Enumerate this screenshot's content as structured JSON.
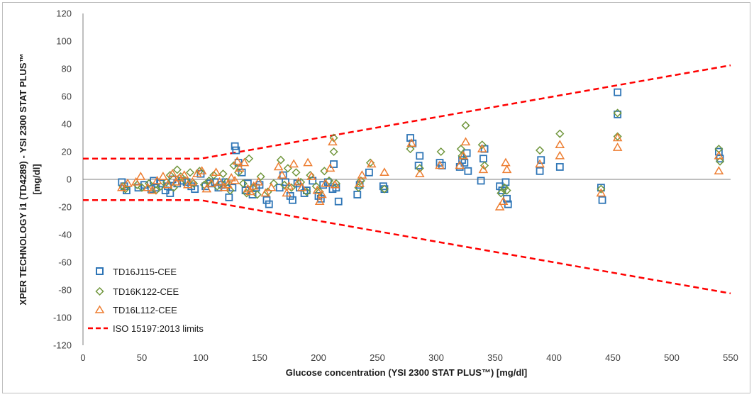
{
  "chart_data": {
    "type": "scatter",
    "title": "",
    "xlabel": "Glucose concentration (YSI 2300 STAT PLUS™) [mg/dl]",
    "ylabel_line1": "XPER TECHNOLOGY i1 (TD4289)  -  YSI 2300 STAT PLUS™",
    "ylabel_line2": "[mg/dl]",
    "xlim": [
      0,
      550
    ],
    "ylim": [
      -120,
      120
    ],
    "x_ticks": [
      0,
      50,
      100,
      150,
      200,
      250,
      300,
      350,
      400,
      450,
      500,
      550
    ],
    "y_ticks": [
      120,
      100,
      80,
      60,
      40,
      20,
      0,
      -20,
      -40,
      -60,
      -80,
      -100,
      -120
    ],
    "grid": false,
    "legend_position": "bottom-left",
    "series": [
      {
        "name": "TD16J115-CEE",
        "marker": "square",
        "color": "#2e75b6",
        "points": [
          [
            33,
            -2
          ],
          [
            35,
            -5
          ],
          [
            37,
            -8
          ],
          [
            47,
            -6
          ],
          [
            52,
            -4
          ],
          [
            58,
            -7
          ],
          [
            60,
            -1
          ],
          [
            62,
            -6
          ],
          [
            66,
            -3
          ],
          [
            70,
            -8
          ],
          [
            72,
            -5
          ],
          [
            74,
            -10
          ],
          [
            76,
            0
          ],
          [
            80,
            -3
          ],
          [
            84,
            -1
          ],
          [
            88,
            -2
          ],
          [
            92,
            -5
          ],
          [
            95,
            -7
          ],
          [
            100,
            4
          ],
          [
            104,
            -5
          ],
          [
            108,
            -3
          ],
          [
            112,
            -2
          ],
          [
            115,
            -6
          ],
          [
            118,
            -4
          ],
          [
            121,
            -2
          ],
          [
            124,
            -13
          ],
          [
            127,
            -6
          ],
          [
            129,
            24
          ],
          [
            130,
            21
          ],
          [
            132,
            12
          ],
          [
            135,
            5
          ],
          [
            138,
            -8
          ],
          [
            140,
            -3
          ],
          [
            144,
            -11
          ],
          [
            147,
            -6
          ],
          [
            150,
            -4
          ],
          [
            156,
            -15
          ],
          [
            158,
            -18
          ],
          [
            167,
            -6
          ],
          [
            170,
            3
          ],
          [
            172,
            -2
          ],
          [
            176,
            -12
          ],
          [
            178,
            -15
          ],
          [
            182,
            -3
          ],
          [
            184,
            -6
          ],
          [
            188,
            -10
          ],
          [
            190,
            -8
          ],
          [
            195,
            -1
          ],
          [
            200,
            -12
          ],
          [
            202,
            -14
          ],
          [
            204,
            -4
          ],
          [
            208,
            -2
          ],
          [
            212,
            -7
          ],
          [
            213,
            11
          ],
          [
            215,
            -6
          ],
          [
            217,
            -16
          ],
          [
            233,
            -11
          ],
          [
            235,
            -4
          ],
          [
            243,
            5
          ],
          [
            255,
            -5
          ],
          [
            256,
            -7
          ],
          [
            278,
            30
          ],
          [
            280,
            26
          ],
          [
            285,
            10
          ],
          [
            286,
            17
          ],
          [
            303,
            12
          ],
          [
            305,
            10
          ],
          [
            320,
            9
          ],
          [
            322,
            14
          ],
          [
            324,
            12
          ],
          [
            326,
            19
          ],
          [
            327,
            6
          ],
          [
            338,
            -1
          ],
          [
            340,
            15
          ],
          [
            341,
            22
          ],
          [
            354,
            -5
          ],
          [
            356,
            -8
          ],
          [
            359,
            -2
          ],
          [
            360,
            -14
          ],
          [
            361,
            -18
          ],
          [
            388,
            6
          ],
          [
            389,
            14
          ],
          [
            405,
            9
          ],
          [
            440,
            -6
          ],
          [
            441,
            -15
          ],
          [
            454,
            47
          ],
          [
            454,
            63
          ],
          [
            540,
            20
          ],
          [
            541,
            15
          ]
        ]
      },
      {
        "name": "TD16K122-CEE",
        "marker": "diamond",
        "color": "#70963c",
        "points": [
          [
            34,
            -5
          ],
          [
            36,
            -7
          ],
          [
            46,
            -4
          ],
          [
            50,
            -6
          ],
          [
            56,
            -3
          ],
          [
            62,
            -8
          ],
          [
            66,
            -5
          ],
          [
            71,
            -2
          ],
          [
            74,
            3
          ],
          [
            77,
            -6
          ],
          [
            80,
            7
          ],
          [
            83,
            2
          ],
          [
            87,
            -1
          ],
          [
            91,
            5
          ],
          [
            94,
            -3
          ],
          [
            99,
            6
          ],
          [
            103,
            -4
          ],
          [
            107,
            -1
          ],
          [
            111,
            3
          ],
          [
            114,
            -5
          ],
          [
            119,
            4
          ],
          [
            122,
            -2
          ],
          [
            125,
            -8
          ],
          [
            128,
            10
          ],
          [
            132,
            5
          ],
          [
            136,
            -3
          ],
          [
            139,
            -10
          ],
          [
            141,
            15
          ],
          [
            144,
            -6
          ],
          [
            148,
            -11
          ],
          [
            151,
            2
          ],
          [
            157,
            -9
          ],
          [
            162,
            -3
          ],
          [
            168,
            14
          ],
          [
            171,
            -4
          ],
          [
            174,
            8
          ],
          [
            177,
            -6
          ],
          [
            181,
            5
          ],
          [
            185,
            -2
          ],
          [
            190,
            -9
          ],
          [
            193,
            3
          ],
          [
            198,
            -5
          ],
          [
            201,
            -9
          ],
          [
            205,
            6
          ],
          [
            209,
            -1
          ],
          [
            213,
            30
          ],
          [
            213,
            20
          ],
          [
            215,
            -3
          ],
          [
            234,
            -6
          ],
          [
            236,
            -1
          ],
          [
            244,
            12
          ],
          [
            256,
            -7
          ],
          [
            278,
            22
          ],
          [
            286,
            8
          ],
          [
            304,
            20
          ],
          [
            321,
            22
          ],
          [
            322,
            17
          ],
          [
            325,
            39
          ],
          [
            339,
            25
          ],
          [
            341,
            10
          ],
          [
            355,
            -10
          ],
          [
            358,
            -6
          ],
          [
            360,
            -8
          ],
          [
            388,
            21
          ],
          [
            405,
            33
          ],
          [
            440,
            -7
          ],
          [
            454,
            48
          ],
          [
            454,
            31
          ],
          [
            540,
            22
          ],
          [
            541,
            13
          ]
        ]
      },
      {
        "name": "TD16L112-CEE",
        "marker": "triangle",
        "color": "#ed7d31",
        "points": [
          [
            33,
            -6
          ],
          [
            38,
            -3
          ],
          [
            45,
            -2
          ],
          [
            49,
            2
          ],
          [
            55,
            -6
          ],
          [
            59,
            -8
          ],
          [
            63,
            -1
          ],
          [
            68,
            2
          ],
          [
            72,
            -4
          ],
          [
            76,
            4
          ],
          [
            79,
            -2
          ],
          [
            82,
            1
          ],
          [
            86,
            3
          ],
          [
            89,
            -4
          ],
          [
            93,
            -2
          ],
          [
            97,
            4
          ],
          [
            101,
            6
          ],
          [
            105,
            -7
          ],
          [
            109,
            -3
          ],
          [
            113,
            5
          ],
          [
            116,
            -2
          ],
          [
            120,
            -6
          ],
          [
            123,
            -4
          ],
          [
            126,
            1
          ],
          [
            129,
            -1
          ],
          [
            131,
            13
          ],
          [
            133,
            8
          ],
          [
            137,
            12
          ],
          [
            140,
            -7
          ],
          [
            142,
            -9
          ],
          [
            145,
            -5
          ],
          [
            149,
            -2
          ],
          [
            155,
            -10
          ],
          [
            160,
            -6
          ],
          [
            166,
            9
          ],
          [
            169,
            3
          ],
          [
            173,
            -10
          ],
          [
            175,
            -5
          ],
          [
            179,
            11
          ],
          [
            183,
            -2
          ],
          [
            186,
            -6
          ],
          [
            191,
            12
          ],
          [
            194,
            2
          ],
          [
            199,
            -8
          ],
          [
            201,
            -16
          ],
          [
            203,
            -11
          ],
          [
            206,
            -3
          ],
          [
            210,
            8
          ],
          [
            212,
            27
          ],
          [
            214,
            -4
          ],
          [
            235,
            -3
          ],
          [
            237,
            3
          ],
          [
            245,
            11
          ],
          [
            256,
            5
          ],
          [
            279,
            26
          ],
          [
            286,
            4
          ],
          [
            303,
            10
          ],
          [
            320,
            10
          ],
          [
            323,
            17
          ],
          [
            325,
            27
          ],
          [
            339,
            22
          ],
          [
            340,
            7
          ],
          [
            354,
            -20
          ],
          [
            357,
            -16
          ],
          [
            359,
            12
          ],
          [
            360,
            7
          ],
          [
            388,
            11
          ],
          [
            405,
            25
          ],
          [
            405,
            17
          ],
          [
            440,
            -10
          ],
          [
            454,
            30
          ],
          [
            454,
            23
          ],
          [
            540,
            17
          ],
          [
            540,
            6
          ]
        ]
      },
      {
        "name": "ISO 15197:2013 limits",
        "line": "dashed",
        "color": "#ff0000",
        "upper": [
          [
            0,
            15
          ],
          [
            100,
            15
          ],
          [
            550,
            82.5
          ]
        ],
        "lower": [
          [
            0,
            -15
          ],
          [
            100,
            -15
          ],
          [
            550,
            -82.5
          ]
        ]
      }
    ]
  }
}
